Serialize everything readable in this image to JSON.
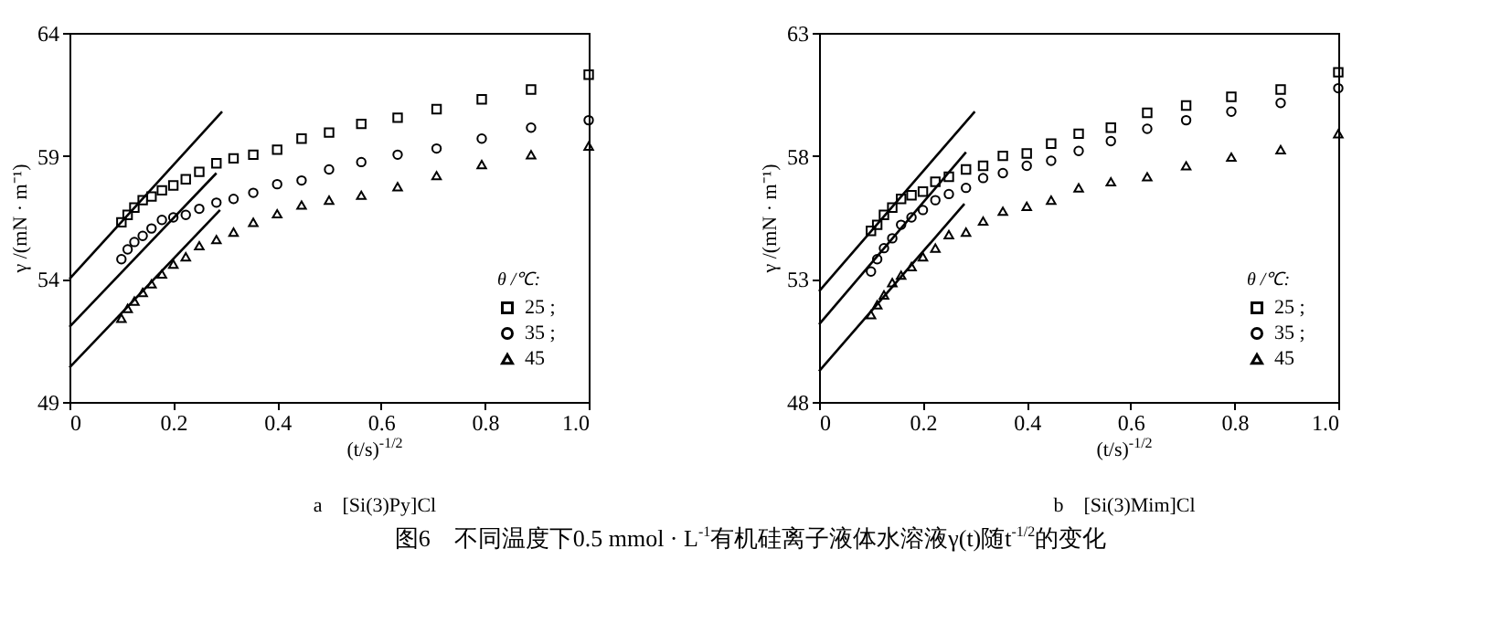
{
  "chart_data": [
    {
      "type": "scatter",
      "subtitle": "a　[Si(3)Py]Cl",
      "xlabel": "(t/s)$^{-1/2}$",
      "ylabel": "γ /(mN · m⁻¹)",
      "legend_title": "θ /℃:",
      "legend": "bottom right",
      "grid": false,
      "xlim": [
        0,
        1
      ],
      "xticks": [
        0,
        0.2,
        0.4,
        0.6,
        0.8,
        {
          "value": 1,
          "label": "1.0"
        }
      ],
      "ylim": [
        49,
        64
      ],
      "yticks": [
        49,
        54,
        59,
        64
      ],
      "x": [
        0.1,
        0.112,
        0.125,
        0.141,
        0.158,
        0.178,
        0.2,
        0.224,
        0.25,
        0.283,
        0.316,
        0.354,
        0.4,
        0.447,
        0.5,
        0.562,
        0.632,
        0.707,
        0.794,
        0.889,
        1.0
      ],
      "series": [
        {
          "name": "25 ;",
          "color": "#000000",
          "marker": "square",
          "values": [
            56.3,
            56.6,
            56.9,
            57.2,
            57.35,
            57.6,
            57.8,
            58.05,
            58.35,
            58.7,
            58.9,
            59.05,
            59.25,
            59.7,
            59.95,
            60.3,
            60.55,
            60.9,
            61.3,
            61.7,
            62.3
          ]
        },
        {
          "name": "35 ;",
          "color": "#000000",
          "marker": "circle",
          "values": [
            54.8,
            55.2,
            55.5,
            55.75,
            56.05,
            56.4,
            56.5,
            56.6,
            56.85,
            57.1,
            57.25,
            57.5,
            57.85,
            58.0,
            58.45,
            58.75,
            59.05,
            59.3,
            59.7,
            60.15,
            60.45
          ]
        },
        {
          "name": "45",
          "color": "#000000",
          "marker": "triangle",
          "values": [
            52.4,
            52.8,
            53.1,
            53.45,
            53.8,
            54.2,
            54.6,
            54.9,
            55.35,
            55.6,
            55.9,
            56.3,
            56.65,
            57.0,
            57.2,
            57.4,
            57.75,
            58.2,
            58.65,
            59.05,
            59.4
          ]
        },
        {
          "type": "line",
          "color": "#000000",
          "x": [
            0,
            0.294
          ],
          "values": [
            54.0,
            60.8
          ]
        },
        {
          "type": "line",
          "color": "#000000",
          "x": [
            0,
            0.283
          ],
          "values": [
            52.05,
            58.3
          ]
        },
        {
          "type": "line",
          "color": "#000000",
          "x": [
            0,
            0.29
          ],
          "values": [
            50.4,
            56.8
          ]
        }
      ],
      "annotations": [
        "图6　不同温度下0.5 mmol · L$^{-1}$有机硅离子液体水溶液γ(t)随t$^{-1/2}$的变化"
      ]
    },
    {
      "type": "scatter",
      "subtitle": "b　[Si(3)Mim]Cl",
      "xlabel": "(t/s)$^{-1/2}$",
      "ylabel": "γ /(mN · m⁻¹)",
      "legend_title": "θ /℃:",
      "legend": "bottom right",
      "grid": false,
      "xlim": [
        0,
        1
      ],
      "xticks": [
        0,
        0.2,
        0.4,
        0.6,
        0.8,
        {
          "value": 1,
          "label": "1.0"
        }
      ],
      "ylim": [
        48,
        63
      ],
      "yticks": [
        48,
        53,
        58,
        63
      ],
      "x": [
        0.1,
        0.112,
        0.125,
        0.141,
        0.158,
        0.178,
        0.2,
        0.224,
        0.25,
        0.283,
        0.316,
        0.354,
        0.4,
        0.447,
        0.5,
        0.562,
        0.632,
        0.707,
        0.794,
        0.889,
        1.0
      ],
      "series": [
        {
          "name": "25 ;",
          "color": "#000000",
          "marker": "square",
          "values": [
            54.95,
            55.2,
            55.6,
            55.9,
            56.25,
            56.4,
            56.55,
            56.95,
            57.15,
            57.45,
            57.6,
            58.0,
            58.1,
            58.5,
            58.9,
            59.15,
            59.75,
            60.05,
            60.4,
            60.7,
            61.4
          ]
        },
        {
          "name": "35 ;",
          "color": "#000000",
          "marker": "circle",
          "values": [
            53.3,
            53.8,
            54.25,
            54.65,
            55.2,
            55.5,
            55.8,
            56.2,
            56.45,
            56.7,
            57.1,
            57.3,
            57.6,
            57.8,
            58.2,
            58.6,
            59.1,
            59.45,
            59.8,
            60.15,
            60.75
          ]
        },
        {
          "name": "45",
          "color": "#000000",
          "marker": "triangle",
          "values": [
            51.55,
            51.95,
            52.35,
            52.85,
            53.15,
            53.5,
            53.9,
            54.25,
            54.8,
            54.9,
            55.35,
            55.75,
            55.95,
            56.2,
            56.7,
            56.95,
            57.15,
            57.6,
            57.95,
            58.25,
            58.9
          ]
        },
        {
          "type": "line",
          "color": "#000000",
          "x": [
            0,
            0.3
          ],
          "values": [
            52.5,
            59.8
          ]
        },
        {
          "type": "line",
          "color": "#000000",
          "x": [
            0,
            0.283
          ],
          "values": [
            51.15,
            58.15
          ]
        },
        {
          "type": "line",
          "color": "#000000",
          "x": [
            0,
            0.28
          ],
          "values": [
            49.25,
            56.05
          ]
        }
      ]
    }
  ]
}
